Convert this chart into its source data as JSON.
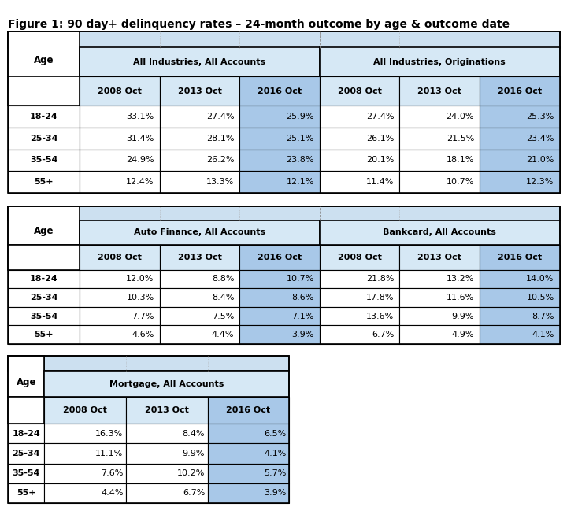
{
  "title": "Figure 1: 90 day+ delinquency rates – 24-month outcome by age & outcome date",
  "table1": {
    "col_groups": [
      "All Industries, All Accounts",
      "All Industries, Originations"
    ],
    "col_headers": [
      "2008 Oct",
      "2013 Oct",
      "2016 Oct",
      "2008 Oct",
      "2013 Oct",
      "2016 Oct"
    ],
    "row_labels": [
      "18-24",
      "25-34",
      "35-54",
      "55+"
    ],
    "data": [
      [
        "33.1%",
        "27.4%",
        "25.9%",
        "27.4%",
        "24.0%",
        "25.3%"
      ],
      [
        "31.4%",
        "28.1%",
        "25.1%",
        "26.1%",
        "21.5%",
        "23.4%"
      ],
      [
        "24.9%",
        "26.2%",
        "23.8%",
        "20.1%",
        "18.1%",
        "21.0%"
      ],
      [
        "12.4%",
        "13.3%",
        "12.1%",
        "11.4%",
        "10.7%",
        "12.3%"
      ]
    ]
  },
  "table2": {
    "col_groups": [
      "Auto Finance, All Accounts",
      "Bankcard, All Accounts"
    ],
    "col_headers": [
      "2008 Oct",
      "2013 Oct",
      "2016 Oct",
      "2008 Oct",
      "2013 Oct",
      "2016 Oct"
    ],
    "row_labels": [
      "18-24",
      "25-34",
      "35-54",
      "55+"
    ],
    "data": [
      [
        "12.0%",
        "8.8%",
        "10.7%",
        "21.8%",
        "13.2%",
        "14.0%"
      ],
      [
        "10.3%",
        "8.4%",
        "8.6%",
        "17.8%",
        "11.6%",
        "10.5%"
      ],
      [
        "7.7%",
        "7.5%",
        "7.1%",
        "13.6%",
        "9.9%",
        "8.7%"
      ],
      [
        "4.6%",
        "4.4%",
        "3.9%",
        "6.7%",
        "4.9%",
        "4.1%"
      ]
    ]
  },
  "table3": {
    "col_groups": [
      "Mortgage, All Accounts"
    ],
    "col_headers": [
      "2008 Oct",
      "2013 Oct",
      "2016 Oct"
    ],
    "row_labels": [
      "18-24",
      "25-34",
      "35-54",
      "55+"
    ],
    "data": [
      [
        "16.3%",
        "8.4%",
        "6.5%"
      ],
      [
        "11.1%",
        "9.9%",
        "4.1%"
      ],
      [
        "7.6%",
        "10.2%",
        "5.7%"
      ],
      [
        "4.4%",
        "6.7%",
        "3.9%"
      ]
    ]
  },
  "colors": {
    "light_blue_top": "#cce0f0",
    "light_blue_header": "#d6e8f5",
    "dark_blue_col": "#a8c8e8",
    "border_outer": "#000000",
    "border_inner": "#000000",
    "border_dashed": "#aaaaaa",
    "white": "#ffffff",
    "age_bg": "#ffffff"
  },
  "font_size_title": 10,
  "font_size_header": 8,
  "font_size_data": 8,
  "cols_per_group_t12": 3,
  "cols_per_group_t3": 3
}
